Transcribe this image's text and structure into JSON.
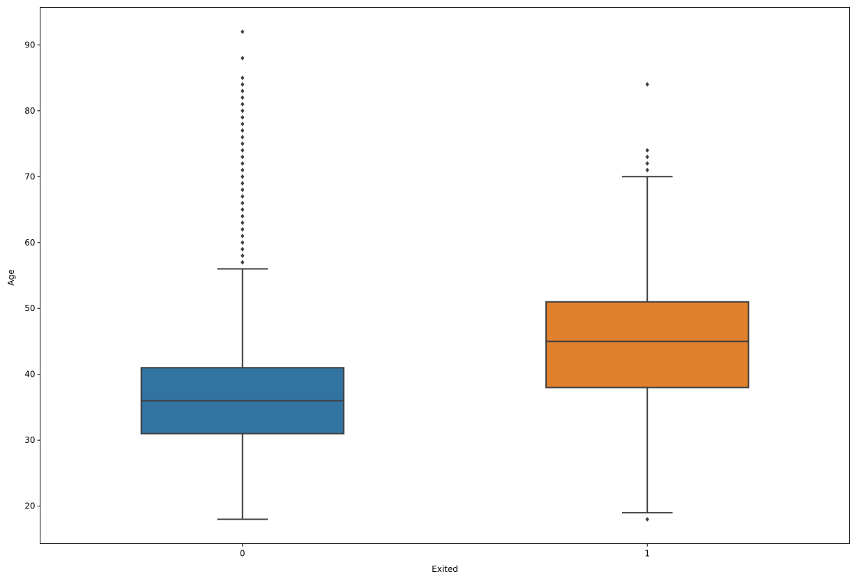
{
  "chart_data": {
    "type": "box",
    "xlabel": "Exited",
    "ylabel": "Age",
    "categories": [
      "0",
      "1"
    ],
    "ylim": [
      14.3,
      95.7
    ],
    "yticks": [
      20,
      30,
      40,
      50,
      60,
      70,
      80,
      90
    ],
    "grid": false,
    "boxes": [
      {
        "category": "0",
        "color": "#3274a1",
        "whisker_low": 18,
        "q1": 31,
        "median": 36,
        "q3": 41,
        "whisker_high": 56,
        "outliers": [
          57,
          58,
          59,
          60,
          61,
          62,
          63,
          64,
          65,
          66,
          67,
          68,
          69,
          70,
          71,
          72,
          73,
          74,
          75,
          76,
          77,
          78,
          79,
          80,
          81,
          82,
          83,
          84,
          85,
          88,
          92
        ]
      },
      {
        "category": "1",
        "color": "#e1812c",
        "whisker_low": 19,
        "q1": 38,
        "median": 45,
        "q3": 51,
        "whisker_high": 70,
        "outliers": [
          18,
          71,
          72,
          73,
          74,
          84
        ]
      }
    ],
    "line_color": "#3f3f3f"
  }
}
